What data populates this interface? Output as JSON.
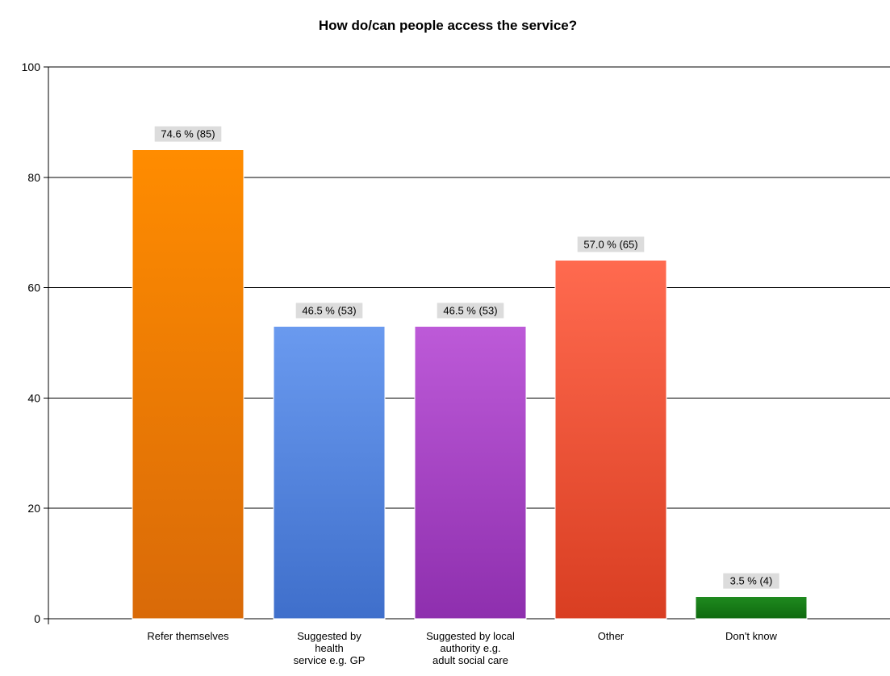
{
  "chart_data": {
    "type": "bar",
    "title": "How do/can people access the service?",
    "xlabel": "",
    "ylabel": "",
    "ylim": [
      0,
      100
    ],
    "yticks": [
      0,
      20,
      40,
      60,
      80,
      100
    ],
    "grid": true,
    "legend": "none",
    "categories": [
      "Refer themselves",
      "Suggested by health service e.g. GP",
      "Suggested by local authority e.g. adult social care",
      "Other",
      "Don't know"
    ],
    "category_label_lines": [
      [
        "Refer themselves"
      ],
      [
        "Suggested by",
        "health",
        "service e.g. GP"
      ],
      [
        "Suggested by local",
        "authority e.g.",
        "adult social care"
      ],
      [
        "Other"
      ],
      [
        "Don't know"
      ]
    ],
    "values": [
      85,
      53,
      53,
      65,
      4
    ],
    "percentages": [
      74.6,
      46.5,
      46.5,
      57.0,
      3.5
    ],
    "data_labels": [
      "74.6 % (85)",
      "46.5 % (53)",
      "46.5 % (53)",
      "57.0 % (65)",
      "3.5 % (4)"
    ],
    "colors": [
      [
        "#FF8C00",
        "#D96A08"
      ],
      [
        "#6A9AEF",
        "#3F6FCB"
      ],
      [
        "#BD5AD8",
        "#8E2FAE"
      ],
      [
        "#FF6A4F",
        "#D93E22"
      ],
      [
        "#1F8A1F",
        "#0F6A0F"
      ]
    ]
  }
}
